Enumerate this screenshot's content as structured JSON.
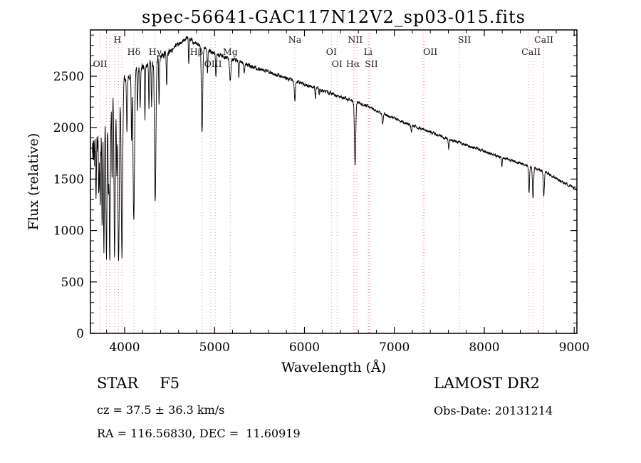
{
  "chart_data": {
    "type": "line",
    "title": "spec-56641-GAC117N12V2_sp03-015.fits",
    "xlabel": "Wavelength (Å)",
    "ylabel": "Flux (relative)",
    "xlim": [
      3620,
      9030
    ],
    "ylim": [
      0,
      2950
    ],
    "x_major_ticks": [
      4000,
      5000,
      6000,
      7000,
      8000,
      9000
    ],
    "x_minor_step": 200,
    "y_major_ticks": [
      0,
      500,
      1000,
      1500,
      2000,
      2500
    ],
    "y_minor_step": 100,
    "x_range": [
      3642,
      9028
    ],
    "sample_step": 2,
    "curve_color": "#000000",
    "marker_color": "#e89a9a",
    "label_color": "#1a1a1a",
    "grid": false,
    "legend": "none",
    "continuum_points": [
      [
        3640,
        1750
      ],
      [
        3700,
        1900
      ],
      [
        3760,
        2050
      ],
      [
        3820,
        2200
      ],
      [
        3880,
        2320
      ],
      [
        3940,
        2400
      ],
      [
        4000,
        2470
      ],
      [
        4100,
        2540
      ],
      [
        4200,
        2590
      ],
      [
        4300,
        2640
      ],
      [
        4400,
        2690
      ],
      [
        4500,
        2740
      ],
      [
        4600,
        2810
      ],
      [
        4700,
        2880
      ],
      [
        4800,
        2820
      ],
      [
        4900,
        2770
      ],
      [
        5000,
        2720
      ],
      [
        5100,
        2690
      ],
      [
        5200,
        2660
      ],
      [
        5300,
        2630
      ],
      [
        5400,
        2600
      ],
      [
        5500,
        2570
      ],
      [
        5600,
        2540
      ],
      [
        5700,
        2510
      ],
      [
        5800,
        2480
      ],
      [
        5900,
        2450
      ],
      [
        6000,
        2420
      ],
      [
        6100,
        2390
      ],
      [
        6200,
        2360
      ],
      [
        6300,
        2330
      ],
      [
        6400,
        2300
      ],
      [
        6500,
        2270
      ],
      [
        6600,
        2240
      ],
      [
        6700,
        2210
      ],
      [
        6800,
        2170
      ],
      [
        6900,
        2130
      ],
      [
        7000,
        2090
      ],
      [
        7100,
        2050
      ],
      [
        7200,
        2020
      ],
      [
        7300,
        1990
      ],
      [
        7400,
        1960
      ],
      [
        7500,
        1925
      ],
      [
        7600,
        1890
      ],
      [
        7700,
        1860
      ],
      [
        7800,
        1830
      ],
      [
        7900,
        1800
      ],
      [
        8000,
        1770
      ],
      [
        8100,
        1740
      ],
      [
        8200,
        1710
      ],
      [
        8300,
        1680
      ],
      [
        8400,
        1655
      ],
      [
        8500,
        1625
      ],
      [
        8600,
        1595
      ],
      [
        8700,
        1555
      ],
      [
        8800,
        1505
      ],
      [
        8900,
        1455
      ],
      [
        9000,
        1420
      ],
      [
        9030,
        1405
      ]
    ],
    "absorption_lines": [
      [
        3683,
        1150,
        4
      ],
      [
        3712,
        1250,
        4
      ],
      [
        3727,
        1200,
        5
      ],
      [
        3750,
        1000,
        5
      ],
      [
        3770,
        870,
        5
      ],
      [
        3798,
        780,
        6
      ],
      [
        3820,
        1380,
        4
      ],
      [
        3835,
        690,
        6
      ],
      [
        3860,
        1480,
        4
      ],
      [
        3889,
        710,
        7
      ],
      [
        3912,
        1600,
        4
      ],
      [
        3933,
        670,
        8
      ],
      [
        3970,
        740,
        8
      ],
      [
        4026,
        1980,
        5
      ],
      [
        4077,
        1880,
        4
      ],
      [
        4102,
        1080,
        8
      ],
      [
        4144,
        2150,
        4
      ],
      [
        4173,
        2180,
        4
      ],
      [
        4226,
        2080,
        4
      ],
      [
        4271,
        2200,
        4
      ],
      [
        4300,
        2220,
        4
      ],
      [
        4340,
        1300,
        8
      ],
      [
        4383,
        2230,
        4
      ],
      [
        4468,
        2400,
        4
      ],
      [
        4713,
        2600,
        4
      ],
      [
        4861,
        1940,
        7
      ],
      [
        4922,
        2520,
        4
      ],
      [
        5015,
        2500,
        4
      ],
      [
        5175,
        2460,
        7
      ],
      [
        5270,
        2500,
        4
      ],
      [
        5329,
        2520,
        4
      ],
      [
        5893,
        2260,
        6
      ],
      [
        6122,
        2280,
        4
      ],
      [
        6163,
        2320,
        3
      ],
      [
        6563,
        1630,
        7
      ],
      [
        6870,
        2030,
        6
      ],
      [
        7190,
        1940,
        4
      ],
      [
        7605,
        1790,
        5
      ],
      [
        8195,
        1620,
        4
      ],
      [
        8498,
        1360,
        5
      ],
      [
        8542,
        1310,
        6
      ],
      [
        8662,
        1340,
        6
      ]
    ],
    "noise_bands": [
      [
        3760,
        300
      ],
      [
        3900,
        130
      ],
      [
        4500,
        60
      ],
      [
        5500,
        38
      ],
      [
        6500,
        28
      ],
      [
        7500,
        24
      ],
      [
        9100,
        22
      ]
    ],
    "marker_lines": [
      3727,
      3798,
      3835,
      3889,
      3933,
      3970,
      4102,
      4340,
      4861,
      4959,
      5007,
      5175,
      5893,
      6300,
      6363,
      6548,
      6563,
      6583,
      6708,
      6716,
      6731,
      7320,
      7330,
      7725,
      8498,
      8542,
      8662
    ],
    "marker_labels": [
      {
        "label": "OII",
        "wl": 3727,
        "row": 3
      },
      {
        "label": "H",
        "wl": 3920,
        "row": 1
      },
      {
        "label": "Hδ",
        "wl": 4102,
        "row": 2
      },
      {
        "label": "Hγ",
        "wl": 4340,
        "row": 2
      },
      {
        "label": "Hβ",
        "wl": 4800,
        "row": 2
      },
      {
        "label": "OIII",
        "wl": 4983,
        "row": 3
      },
      {
        "label": "Mg",
        "wl": 5175,
        "row": 2
      },
      {
        "label": "Na",
        "wl": 5893,
        "row": 1
      },
      {
        "label": "OI",
        "wl": 6300,
        "row": 2
      },
      {
        "label": "OI",
        "wl": 6363,
        "row": 3
      },
      {
        "label": "NII",
        "wl": 6565,
        "row": 1
      },
      {
        "label": "Hα",
        "wl": 6540,
        "row": 3
      },
      {
        "label": "Li",
        "wl": 6708,
        "row": 2
      },
      {
        "label": "SII",
        "wl": 6745,
        "row": 3
      },
      {
        "label": "OII",
        "wl": 7400,
        "row": 2
      },
      {
        "label": "SII",
        "wl": 7780,
        "row": 1
      },
      {
        "label": "CaII",
        "wl": 8520,
        "row": 2
      },
      {
        "label": "CaII",
        "wl": 8662,
        "row": 1
      }
    ]
  },
  "annotations": {
    "object_class": "STAR",
    "subclass": "F5",
    "survey": "LAMOST DR2",
    "cz": "cz = 37.5 ± 36.3 km/s",
    "obs_date": "Obs-Date: 20131214",
    "ra_dec": "RA = 116.56830, DEC =  11.60919"
  }
}
